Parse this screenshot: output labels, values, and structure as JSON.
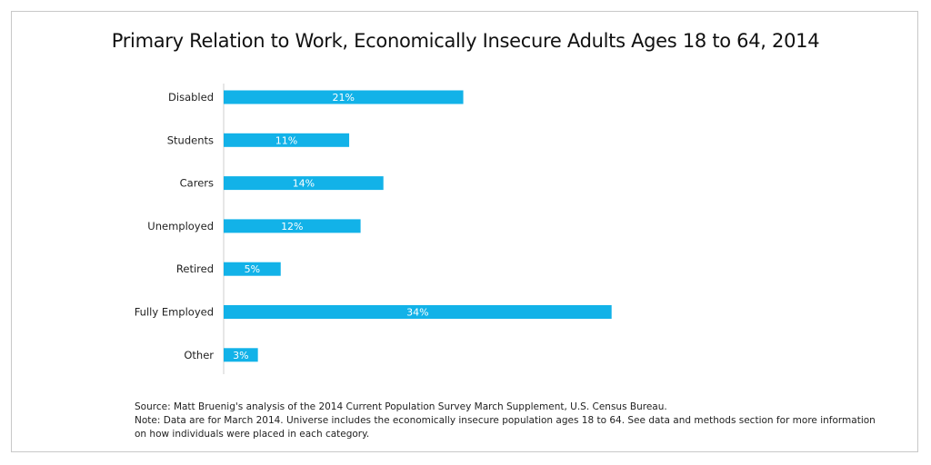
{
  "chart_data": {
    "type": "bar",
    "orientation": "horizontal",
    "title": "Primary Relation to Work, Economically Insecure Adults Ages 18 to 64, 2014",
    "categories": [
      "Disabled",
      "Students",
      "Carers",
      "Unemployed",
      "Retired",
      "Fully Employed",
      "Other"
    ],
    "values": [
      21,
      11,
      14,
      12,
      5,
      34,
      3
    ],
    "data_labels": [
      "21%",
      "11%",
      "14%",
      "12%",
      "5%",
      "34%",
      "3%"
    ],
    "unit": "%",
    "bar_color": "#12B2E8",
    "grid": false,
    "legend": "none"
  },
  "notes": {
    "source": "Source: Matt Bruenig's analysis of the 2014 Current Population Survey March Supplement, U.S. Census Bureau.",
    "note": "Note: Data are for March 2014. Universe includes the economically insecure population ages 18 to 64. See data and methods section for more information on how individuals were placed in each category."
  }
}
